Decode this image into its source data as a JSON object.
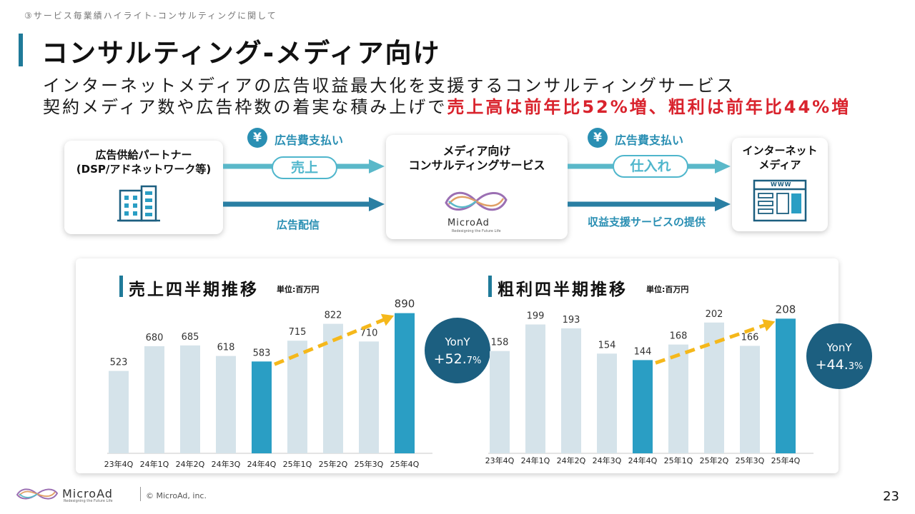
{
  "header": {
    "section": "③サービス毎業績ハイライト-コンサルティングに関して",
    "title": "コンサルティング-メディア向け",
    "lead_line1": "インターネットメディアの広告収益最大化を支援するコンサルティングサービス",
    "lead_line2_plain": "契約メディア数や広告枠数の着実な積み上げで",
    "lead_line2_highlight": "売上高は前年比52%増、粗利は前年比44%増"
  },
  "flow": {
    "left_box": {
      "line1": "広告供給パートナー",
      "line2": "(DSP/アドネットワーク等)",
      "icon": "building-icon"
    },
    "mid_box": {
      "line1": "メディア向け",
      "line2": "コンサルティングサービス",
      "logo_text": "MicroAd",
      "logo_tagline": "Redesigning the Future Life"
    },
    "right_box": {
      "line1": "インターネット",
      "line2": "メディア",
      "icon": "browser-window-icon",
      "www": "WWW"
    },
    "yen_symbol": "¥",
    "left_payment_label": "広告費支払い",
    "left_pill": "売上",
    "left_bottom_caption": "広告配信",
    "right_payment_label": "広告費支払い",
    "right_pill": "仕入れ",
    "right_bottom_caption": "収益支援サービスの提供"
  },
  "colors": {
    "accent": "#1f7a99",
    "bar_light": "#d5e3ea",
    "bar_highlight": "#2a9ec4",
    "yony_circle": "#1c5f80",
    "trend_arrow": "#f5b81b",
    "highlight_text": "#d9232d",
    "flow_arrow_light": "#5ab8c9",
    "flow_arrow_dark": "#2a7fa3"
  },
  "chart_data": [
    {
      "type": "bar",
      "title": "売上四半期推移",
      "unit": "単位:百万円",
      "categories": [
        "23年4Q",
        "24年1Q",
        "24年2Q",
        "24年3Q",
        "24年4Q",
        "25年1Q",
        "25年2Q",
        "25年3Q",
        "25年4Q"
      ],
      "values": [
        523,
        680,
        685,
        618,
        583,
        715,
        822,
        710,
        890
      ],
      "highlighted": [
        "24年4Q",
        "25年4Q"
      ],
      "ylim": [
        0,
        920
      ],
      "yony_label": "YonY",
      "yony_value": "+52.",
      "yony_decimal": "7%",
      "trend_from": "24年4Q",
      "trend_to": "25年4Q"
    },
    {
      "type": "bar",
      "title": "粗利四半期推移",
      "unit": "単位:百万円",
      "categories": [
        "23年4Q",
        "24年1Q",
        "24年2Q",
        "24年3Q",
        "24年4Q",
        "25年1Q",
        "25年2Q",
        "25年3Q",
        "25年4Q"
      ],
      "values": [
        158,
        199,
        193,
        154,
        144,
        168,
        202,
        166,
        208
      ],
      "highlighted": [
        "24年4Q",
        "25年4Q"
      ],
      "ylim": [
        0,
        215
      ],
      "yony_label": "YonY",
      "yony_value": "+44.",
      "yony_decimal": "3%",
      "trend_from": "24年4Q",
      "trend_to": "25年4Q"
    }
  ],
  "footer": {
    "logo_text": "MicroAd",
    "logo_tagline": "Redesigning the Future Life",
    "copyright": "© MicroAd, inc.",
    "page_number": "23"
  }
}
